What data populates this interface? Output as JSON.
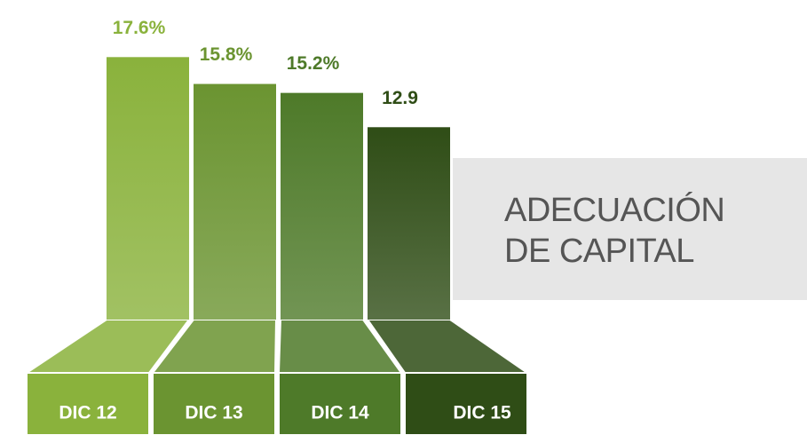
{
  "chart_data": {
    "type": "bar",
    "title": "ADECUACIÓN DE CAPITAL",
    "categories": [
      "DIC 12",
      "DIC 13",
      "DIC 14",
      "DIC 15"
    ],
    "values": [
      17.6,
      15.8,
      15.2,
      12.9
    ],
    "value_labels": [
      "17.6%",
      "15.8%",
      "15.2%",
      "12.9"
    ],
    "colors": [
      "#8ab23c",
      "#6b9431",
      "#4e7a29",
      "#2f4d16"
    ]
  }
}
